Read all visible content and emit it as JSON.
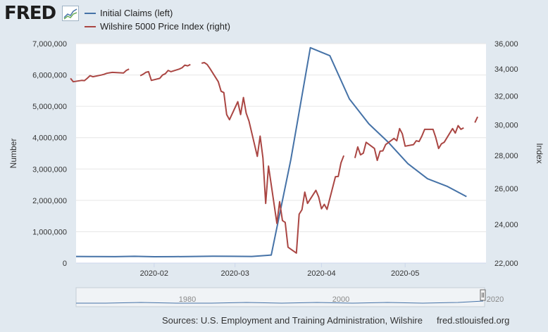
{
  "brand": {
    "logo_text": "FRED"
  },
  "legend": [
    {
      "label": "Initial Claims (left)",
      "color": "#4572a7"
    },
    {
      "label": "Wilshire 5000 Price Index (right)",
      "color": "#aa4643"
    }
  ],
  "footer": {
    "sources": "Sources: U.S. Employment and Training Administration, Wilshire",
    "site": "fred.stlouisfed.org"
  },
  "navigator": {
    "labels": [
      "1980",
      "2000",
      "2020"
    ]
  },
  "chart_data": {
    "type": "line",
    "ylabel_left": "Number",
    "ylabel_right": "Index",
    "xlim": [
      "2020-01-04",
      "2020-05-30"
    ],
    "ylim_left": [
      0,
      7000000
    ],
    "ylim_right": [
      22000,
      36000
    ],
    "y_scale_right": "log",
    "x_ticks": [
      {
        "date": "2020-02-01",
        "label": "2020-02"
      },
      {
        "date": "2020-03-01",
        "label": "2020-03"
      },
      {
        "date": "2020-04-01",
        "label": "2020-04"
      },
      {
        "date": "2020-05-01",
        "label": "2020-05"
      }
    ],
    "left_ticks": [
      {
        "value": 0,
        "label": "0"
      },
      {
        "value": 1000000,
        "label": "1,000,000"
      },
      {
        "value": 2000000,
        "label": "2,000,000"
      },
      {
        "value": 3000000,
        "label": "3,000,000"
      },
      {
        "value": 4000000,
        "label": "4,000,000"
      },
      {
        "value": 5000000,
        "label": "5,000,000"
      },
      {
        "value": 6000000,
        "label": "6,000,000"
      },
      {
        "value": 7000000,
        "label": "7,000,000"
      }
    ],
    "right_ticks": [
      {
        "value": 22000,
        "label": "22,000"
      },
      {
        "value": 24000,
        "label": "24,000"
      },
      {
        "value": 26000,
        "label": "26,000"
      },
      {
        "value": 28000,
        "label": "28,000"
      },
      {
        "value": 30000,
        "label": "30,000"
      },
      {
        "value": 32000,
        "label": "32,000"
      },
      {
        "value": 34000,
        "label": "34,000"
      },
      {
        "value": 36000,
        "label": "36,000"
      }
    ],
    "series": [
      {
        "name": "Initial Claims (left)",
        "axis": "left",
        "color": "#4572a7",
        "points": [
          [
            "2020-01-04",
            212000
          ],
          [
            "2020-01-11",
            207000
          ],
          [
            "2020-01-18",
            205000
          ],
          [
            "2020-01-25",
            215000
          ],
          [
            "2020-02-01",
            203000
          ],
          [
            "2020-02-08",
            204000
          ],
          [
            "2020-02-15",
            211000
          ],
          [
            "2020-02-22",
            219000
          ],
          [
            "2020-02-29",
            216000
          ],
          [
            "2020-03-07",
            211000
          ],
          [
            "2020-03-14",
            256000
          ],
          [
            "2020-03-21",
            3300000
          ],
          [
            "2020-03-28",
            6870000
          ],
          [
            "2020-04-04",
            6615000
          ],
          [
            "2020-04-11",
            5237000
          ],
          [
            "2020-04-18",
            4440000
          ],
          [
            "2020-04-25",
            3850000
          ],
          [
            "2020-05-02",
            3170000
          ],
          [
            "2020-05-09",
            2690000
          ],
          [
            "2020-05-16",
            2450000
          ],
          [
            "2020-05-23",
            2120000
          ]
        ]
      },
      {
        "name": "Wilshire 5000 Price Index (right)",
        "axis": "right",
        "color": "#aa4643",
        "segments": [
          [
            [
              "2020-01-02",
              33300
            ],
            [
              "2020-01-03",
              33050
            ],
            [
              "2020-01-06",
              33150
            ],
            [
              "2020-01-07",
              33130
            ],
            [
              "2020-01-08",
              33300
            ],
            [
              "2020-01-09",
              33500
            ],
            [
              "2020-01-10",
              33420
            ],
            [
              "2020-01-13",
              33550
            ],
            [
              "2020-01-14",
              33600
            ],
            [
              "2020-01-15",
              33680
            ],
            [
              "2020-01-16",
              33720
            ],
            [
              "2020-01-17",
              33750
            ],
            [
              "2020-01-21",
              33700
            ],
            [
              "2020-01-22",
              33900
            ],
            [
              "2020-01-23",
              34000
            ]
          ],
          [
            [
              "2020-01-27",
              33500
            ],
            [
              "2020-01-28",
              33600
            ],
            [
              "2020-01-29",
              33750
            ],
            [
              "2020-01-30",
              33800
            ],
            [
              "2020-01-31",
              33150
            ],
            [
              "2020-02-03",
              33300
            ],
            [
              "2020-02-04",
              33550
            ],
            [
              "2020-02-05",
              33650
            ],
            [
              "2020-02-06",
              33900
            ],
            [
              "2020-02-07",
              33800
            ],
            [
              "2020-02-10",
              34000
            ],
            [
              "2020-02-11",
              34100
            ],
            [
              "2020-02-12",
              34300
            ],
            [
              "2020-02-13",
              34250
            ],
            [
              "2020-02-14",
              34350
            ]
          ],
          [
            [
              "2020-02-18",
              34450
            ],
            [
              "2020-02-19",
              34500
            ],
            [
              "2020-02-20",
              34350
            ],
            [
              "2020-02-21",
              34050
            ],
            [
              "2020-02-24",
              33050
            ],
            [
              "2020-02-25",
              32350
            ],
            [
              "2020-02-26",
              32250
            ],
            [
              "2020-02-27",
              30700
            ],
            [
              "2020-02-28",
              30350
            ],
            [
              "2020-03-02",
              31600
            ],
            [
              "2020-03-03",
              30700
            ],
            [
              "2020-03-04",
              31900
            ],
            [
              "2020-03-05",
              30800
            ],
            [
              "2020-03-06",
              30250
            ],
            [
              "2020-03-09",
              27950
            ],
            [
              "2020-03-10",
              29250
            ],
            [
              "2020-03-11",
              27850
            ],
            [
              "2020-03-12",
              25150
            ],
            [
              "2020-03-13",
              27350
            ],
            [
              "2020-03-16",
              24050
            ],
            [
              "2020-03-17",
              25250
            ],
            [
              "2020-03-18",
              24200
            ],
            [
              "2020-03-19",
              24100
            ],
            [
              "2020-03-20",
              22800
            ],
            [
              "2020-03-23",
              22500
            ],
            [
              "2020-03-24",
              24550
            ],
            [
              "2020-03-25",
              24800
            ],
            [
              "2020-03-26",
              25800
            ],
            [
              "2020-03-27",
              25150
            ],
            [
              "2020-03-30",
              25900
            ],
            [
              "2020-03-31",
              25520
            ],
            [
              "2020-04-01",
              24850
            ],
            [
              "2020-04-02",
              25100
            ],
            [
              "2020-04-03",
              24820
            ],
            [
              "2020-04-06",
              26700
            ],
            [
              "2020-04-07",
              26720
            ],
            [
              "2020-04-08",
              27550
            ],
            [
              "2020-04-09",
              28000
            ]
          ],
          [
            [
              "2020-04-13",
              27850
            ],
            [
              "2020-04-14",
              28550
            ],
            [
              "2020-04-15",
              28050
            ],
            [
              "2020-04-16",
              28150
            ],
            [
              "2020-04-17",
              28850
            ],
            [
              "2020-04-20",
              28450
            ],
            [
              "2020-04-21",
              27700
            ],
            [
              "2020-04-22",
              28280
            ],
            [
              "2020-04-23",
              28300
            ],
            [
              "2020-04-24",
              28700
            ],
            [
              "2020-04-27",
              29100
            ],
            [
              "2020-04-28",
              28950
            ],
            [
              "2020-04-29",
              29750
            ],
            [
              "2020-04-30",
              29400
            ],
            [
              "2020-05-01",
              28600
            ],
            [
              "2020-05-04",
              28700
            ],
            [
              "2020-05-05",
              28950
            ],
            [
              "2020-05-06",
              28900
            ],
            [
              "2020-05-07",
              29250
            ],
            [
              "2020-05-08",
              29700
            ],
            [
              "2020-05-11",
              29700
            ],
            [
              "2020-05-12",
              29150
            ],
            [
              "2020-05-13",
              28450
            ],
            [
              "2020-05-14",
              28750
            ],
            [
              "2020-05-15",
              28850
            ],
            [
              "2020-05-18",
              29750
            ],
            [
              "2020-05-19",
              29450
            ],
            [
              "2020-05-20",
              29950
            ],
            [
              "2020-05-21",
              29700
            ],
            [
              "2020-05-22",
              29800
            ]
          ],
          [
            [
              "2020-05-26",
              30150
            ],
            [
              "2020-05-27",
              30550
            ]
          ]
        ]
      }
    ],
    "grid": "horizontal"
  }
}
